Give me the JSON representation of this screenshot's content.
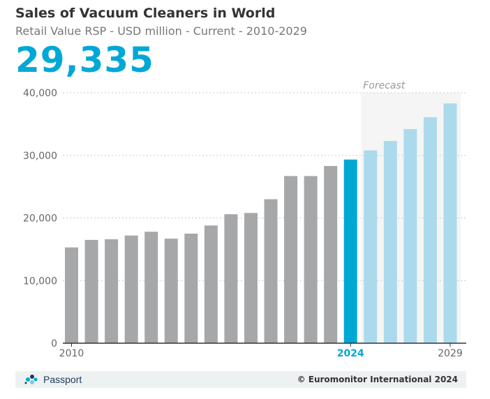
{
  "title": "Sales of Vacuum Cleaners in World",
  "subtitle": "Retail Value RSP - USD million - Current - 2010-2029",
  "headline_value": "29,335",
  "footer": {
    "brand": "Passport",
    "copyright": "© Euromonitor International 2024"
  },
  "colors": {
    "historic": "#a6a7a9",
    "current": "#00a8d6",
    "forecast": "#acdaed",
    "forecast_band": "#f5f5f5",
    "headline": "#00a8d6"
  },
  "chart_data": {
    "type": "bar",
    "title": "Sales of Vacuum Cleaners in World",
    "subtitle": "Retail Value RSP - USD million - Current - 2010-2029",
    "categories": [
      "2010",
      "2011",
      "2012",
      "2013",
      "2014",
      "2015",
      "2016",
      "2017",
      "2018",
      "2019",
      "2020",
      "2021",
      "2022",
      "2023",
      "2024",
      "2025",
      "2026",
      "2027",
      "2028",
      "2029"
    ],
    "values": [
      15300,
      16500,
      16600,
      17200,
      17800,
      16700,
      17500,
      18800,
      20600,
      20800,
      23000,
      26700,
      26700,
      28300,
      29335,
      30800,
      32300,
      34200,
      36100,
      38300
    ],
    "xtick_labels": [
      {
        "category": "2010",
        "label": "2010"
      },
      {
        "category": "2024",
        "label": "2024"
      },
      {
        "category": "2029",
        "label": "2029"
      }
    ],
    "highlight_category": "2024",
    "forecast_from": "2025",
    "forecast_label": "Forecast",
    "yticks": [
      0,
      10000,
      20000,
      30000,
      40000
    ],
    "ytick_labels": [
      "0",
      "10,000",
      "20,000",
      "30,000",
      "40,000"
    ],
    "ylim": [
      0,
      40000
    ],
    "xlabel": "",
    "ylabel": "",
    "grid": true
  }
}
